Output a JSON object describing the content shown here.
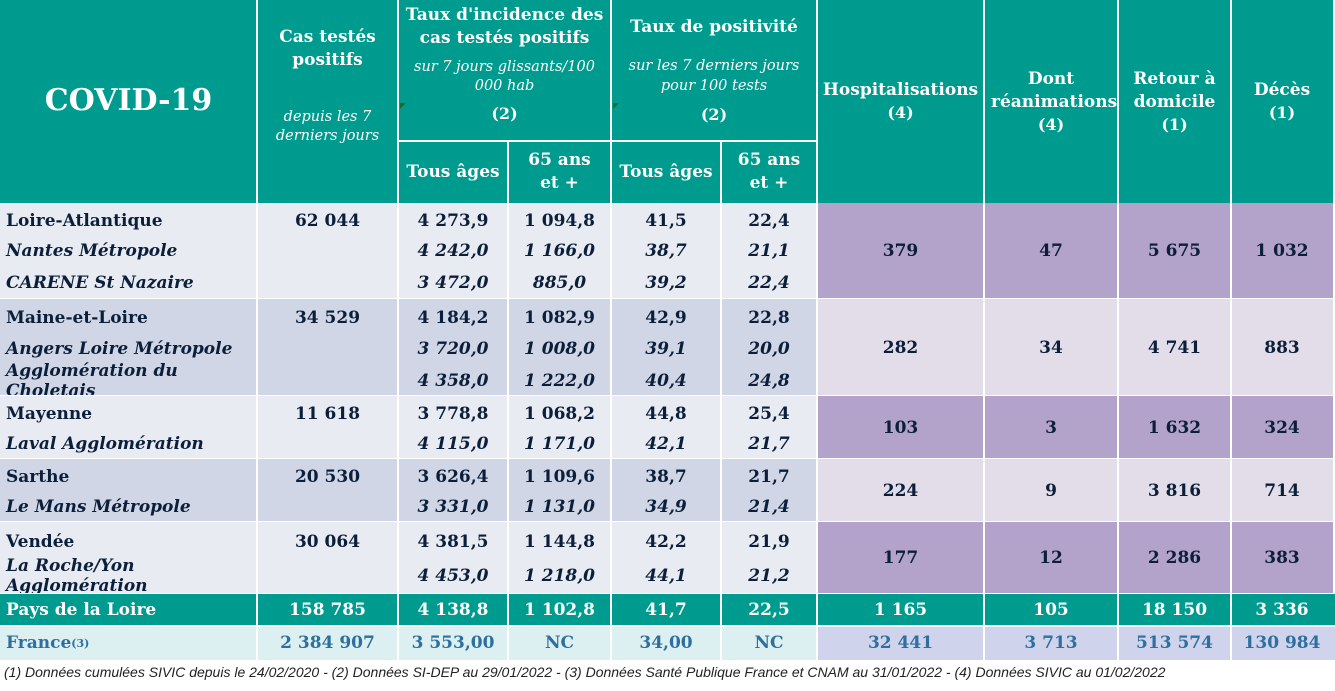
{
  "headers": {
    "covid": "COVID-19",
    "cas": "Cas testés positifs",
    "cas_sub": "depuis les 7 derniers jours",
    "incidence": "Taux d'incidence des cas testés positifs",
    "incidence_sub": "sur 7 jours glissants/100 000 hab",
    "incidence_note": "(2)",
    "positivite": "Taux de positivité",
    "positivite_sub": "sur les 7 derniers jours pour 100 tests",
    "positivite_note": "(2)",
    "tous_ages": "Tous âges",
    "plus65": "65 ans et +",
    "hospitalisations": "Hospitalisations",
    "hospitalisations_note": "(4)",
    "reanimations": "Dont réanimations",
    "reanimations_note": "(4)",
    "retour": "Retour à domicile",
    "retour_note": "(1)",
    "deces": "Décès",
    "deces_note": "(1)"
  },
  "departments": [
    {
      "name": "Loire-Atlantique",
      "cas": "62 044",
      "inc_all": "4 273,9",
      "inc_65": "1 094,8",
      "pos_all": "41,5",
      "pos_65": "22,4",
      "hosp": "379",
      "rea": "47",
      "retour": "5 675",
      "deces": "1 032",
      "subs": [
        {
          "name": "Nantes Métropole",
          "inc_all": "4 242,0",
          "inc_65": "1 166,0",
          "pos_all": "38,7",
          "pos_65": "21,1"
        },
        {
          "name": "CARENE St Nazaire",
          "inc_all": "3 472,0",
          "inc_65": "885,0",
          "pos_all": "39,2",
          "pos_65": "22,4"
        }
      ]
    },
    {
      "name": "Maine-et-Loire",
      "cas": "34 529",
      "inc_all": "4 184,2",
      "inc_65": "1 082,9",
      "pos_all": "42,9",
      "pos_65": "22,8",
      "hosp": "282",
      "rea": "34",
      "retour": "4 741",
      "deces": "883",
      "subs": [
        {
          "name": "Angers Loire Métropole",
          "inc_all": "3 720,0",
          "inc_65": "1 008,0",
          "pos_all": "39,1",
          "pos_65": "20,0"
        },
        {
          "name": "Agglomération du Choletais",
          "inc_all": "4 358,0",
          "inc_65": "1 222,0",
          "pos_all": "40,4",
          "pos_65": "24,8"
        }
      ]
    },
    {
      "name": "Mayenne",
      "cas": "11 618",
      "inc_all": "3 778,8",
      "inc_65": "1 068,2",
      "pos_all": "44,8",
      "pos_65": "25,4",
      "hosp": "103",
      "rea": "3",
      "retour": "1 632",
      "deces": "324",
      "subs": [
        {
          "name": "Laval Agglomération",
          "inc_all": "4 115,0",
          "inc_65": "1 171,0",
          "pos_all": "42,1",
          "pos_65": "21,7"
        }
      ]
    },
    {
      "name": "Sarthe",
      "cas": "20 530",
      "inc_all": "3 626,4",
      "inc_65": "1 109,6",
      "pos_all": "38,7",
      "pos_65": "21,7",
      "hosp": "224",
      "rea": "9",
      "retour": "3 816",
      "deces": "714",
      "subs": [
        {
          "name": "Le Mans Métropole",
          "inc_all": "3 331,0",
          "inc_65": "1 131,0",
          "pos_all": "34,9",
          "pos_65": "21,4"
        }
      ]
    },
    {
      "name": "Vendée",
      "cas": "30 064",
      "inc_all": "4 381,5",
      "inc_65": "1 144,8",
      "pos_all": "42,2",
      "pos_65": "21,9",
      "hosp": "177",
      "rea": "12",
      "retour": "2 286",
      "deces": "383",
      "subs": [
        {
          "name": "La Roche/Yon Agglomération",
          "inc_all": "4 453,0",
          "inc_65": "1 218,0",
          "pos_all": "44,1",
          "pos_65": "21,2"
        }
      ]
    }
  ],
  "region": {
    "name": "Pays de la Loire",
    "cas": "158 785",
    "inc_all": "4 138,8",
    "inc_65": "1 102,8",
    "pos_all": "41,7",
    "pos_65": "22,5",
    "hosp": "1 165",
    "rea": "105",
    "retour": "18 150",
    "deces": "3 336"
  },
  "france": {
    "name": "France",
    "name_note": "(3)",
    "cas": "2 384 907",
    "inc_all": "3 553,00",
    "inc_65": "NC",
    "pos_all": "34,00",
    "pos_65": "NC",
    "hosp": "32 441",
    "rea": "3 713",
    "retour": "513 574",
    "deces": "130 984"
  },
  "footnote": "(1) Données cumulées SIVIC depuis le 24/02/2020 - (2) Données SI-DEP  au 29/01/2022 - (3) Données Santé Publique France et CNAM au 31/01/2022 - (4) Données SIVIC au 01/02/2022",
  "colors": {
    "header": "#009b8f",
    "row_light": "#e9ebf3",
    "row_dark": "#d0d6e5",
    "purple_dark": "#b3a2ca",
    "purple_light": "#e3dde9",
    "total": "#009b8f",
    "france_light": "#dcf0f1",
    "france_purple": "#cfd4ec",
    "orange": "#e2701e",
    "navy": "#0b1f3a"
  }
}
